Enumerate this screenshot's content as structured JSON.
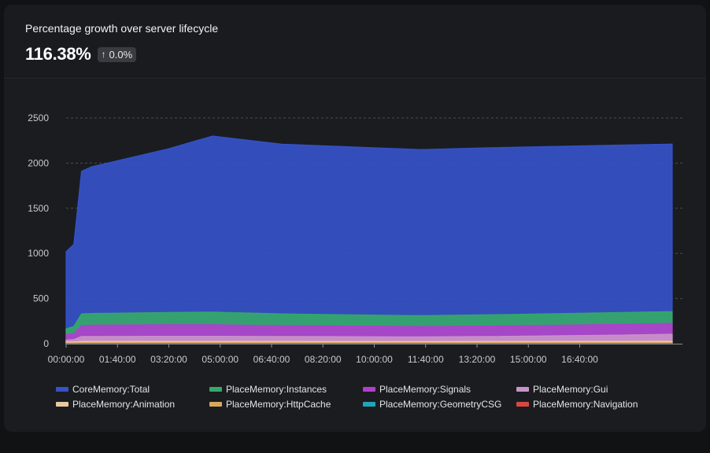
{
  "card": {
    "title": "Percentage growth over server lifecycle",
    "metric": "116.38%",
    "delta": "0.0%",
    "delta_icon": "arrow-up-icon"
  },
  "colors": {
    "background": "#111214",
    "card": "#1b1c20",
    "grid": "#4a4c52",
    "axis_text": "#c9cacf"
  },
  "chart_data": {
    "type": "area",
    "stacked": false,
    "x_ticks": [
      "00:00:00",
      "01:40:00",
      "03:20:00",
      "05:00:00",
      "06:40:00",
      "08:20:00",
      "10:00:00",
      "11:40:00",
      "13:20:00",
      "15:00:00",
      "16:40:00"
    ],
    "x_range_seconds": [
      0,
      72000
    ],
    "x": [
      0,
      900,
      1800,
      3000,
      12000,
      17100,
      25200,
      41400,
      49500,
      64800,
      70800
    ],
    "ylim": [
      0,
      2500
    ],
    "y_ticks": [
      0,
      500,
      1000,
      1500,
      2000,
      2500
    ],
    "grid": true,
    "legend_position": "bottom",
    "series": [
      {
        "name": "CoreMemory:Total",
        "color": "#3552c9",
        "values": [
          1020,
          1100,
          1910,
          1960,
          2160,
          2300,
          2210,
          2150,
          2170,
          2200,
          2210
        ]
      },
      {
        "name": "PlaceMemory:Instances",
        "color": "#35a86a",
        "values": [
          165,
          190,
          330,
          335,
          345,
          350,
          330,
          310,
          320,
          345,
          355
        ]
      },
      {
        "name": "PlaceMemory:Signals",
        "color": "#b03fce",
        "values": [
          100,
          110,
          200,
          205,
          210,
          210,
          200,
          190,
          195,
          215,
          225
        ]
      },
      {
        "name": "PlaceMemory:Gui",
        "color": "#c893c9",
        "values": [
          40,
          45,
          80,
          80,
          82,
          82,
          80,
          75,
          80,
          95,
          105
        ]
      },
      {
        "name": "PlaceMemory:Animation",
        "color": "#e8caa0",
        "values": [
          20,
          20,
          25,
          25,
          25,
          25,
          25,
          24,
          25,
          26,
          27
        ]
      },
      {
        "name": "PlaceMemory:HttpCache",
        "color": "#d8a85a",
        "values": [
          8,
          8,
          10,
          10,
          10,
          10,
          10,
          10,
          10,
          10,
          10
        ]
      },
      {
        "name": "PlaceMemory:GeometryCSG",
        "color": "#20a5b8",
        "values": [
          1,
          1,
          2,
          2,
          2,
          2,
          2,
          2,
          2,
          2,
          2
        ]
      },
      {
        "name": "PlaceMemory:Navigation",
        "color": "#d6483f",
        "values": [
          0,
          0,
          1,
          1,
          1,
          1,
          1,
          1,
          1,
          1,
          1
        ]
      }
    ]
  }
}
